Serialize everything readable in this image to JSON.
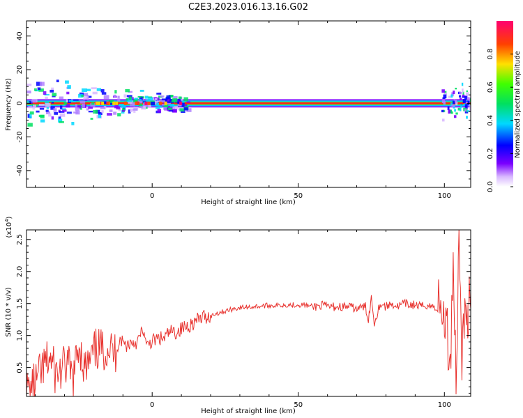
{
  "figure": {
    "title": "C2E3.2023.016.13.16.G02"
  },
  "colors": {
    "snr_line": "#e8332f",
    "axis": "#000000",
    "band_core": "#ff2020",
    "colormap": [
      "#ffffff",
      "#d8b8ff",
      "#7a00ff",
      "#0000ff",
      "#00d8ff",
      "#00ff60",
      "#b8ff00",
      "#ffd000",
      "#ff5000",
      "#ff0070"
    ]
  },
  "chart_data": [
    {
      "type": "heatmap",
      "xlabel": "Height of straight line (km)",
      "ylabel": "Frequency (Hz)",
      "xlim": [
        -43,
        109
      ],
      "ylim": [
        -50,
        49
      ],
      "xticks": [
        0,
        50,
        100
      ],
      "yticks": [
        40,
        20,
        0,
        -20,
        -40
      ],
      "colorbar": {
        "label": "Normalized spectral amplitude",
        "range": [
          0.0,
          1.0
        ],
        "ticks": [
          "0.0",
          "0.2",
          "0.4",
          "0.6",
          "0.8"
        ]
      },
      "band": {
        "frequency_hz": 0,
        "x_range": [
          -43,
          109
        ],
        "noisy_low_end_x": [
          -43,
          12
        ],
        "noisy_high_end_x": [
          98,
          109
        ]
      }
    },
    {
      "type": "line",
      "xlabel": "Height of straight line (km)",
      "ylabel": "SNR (10 * v/v)",
      "y_multiplier": "(x10^4)",
      "xlim": [
        -43,
        109
      ],
      "ylim": [
        0.05,
        2.65
      ],
      "xticks": [
        0,
        50,
        100
      ],
      "yticks": [
        0.5,
        1.0,
        1.5,
        2.0,
        2.5
      ],
      "ytick_labels": [
        "0.5",
        "1.0",
        "1.5",
        "2.0",
        "2.5"
      ],
      "series": [
        {
          "x": [
            -43,
            -40,
            -37,
            -35,
            -33,
            -31,
            -29,
            -27,
            -25,
            -23,
            -21,
            -19,
            -17,
            -15,
            -13,
            -11,
            -9,
            -7,
            -5,
            -3,
            -2,
            -1,
            0,
            2,
            4,
            6,
            8,
            10,
            12,
            14,
            16,
            18,
            20,
            22,
            25,
            28,
            31,
            34,
            37,
            40,
            43,
            46,
            49,
            52,
            55,
            58,
            61,
            64,
            67,
            70,
            73,
            74,
            75,
            76,
            78,
            80,
            82,
            84,
            86,
            88,
            90,
            92,
            94,
            96,
            98,
            100,
            101,
            102,
            103,
            104,
            105,
            106,
            107,
            108,
            109
          ],
          "y": [
            0.1,
            0.25,
            0.5,
            0.65,
            0.4,
            0.45,
            0.55,
            0.3,
            0.9,
            0.45,
            0.6,
            0.8,
            0.75,
            0.85,
            0.7,
            0.95,
            0.85,
            0.9,
            0.9,
            1.1,
            0.8,
            0.9,
            0.9,
            0.95,
            0.95,
            1.05,
            1.05,
            1.1,
            1.15,
            1.2,
            1.25,
            1.3,
            1.3,
            1.35,
            1.38,
            1.42,
            1.44,
            1.45,
            1.46,
            1.47,
            1.47,
            1.48,
            1.48,
            1.48,
            1.45,
            1.47,
            1.45,
            1.45,
            1.45,
            1.42,
            1.45,
            1.25,
            1.6,
            1.2,
            1.5,
            1.45,
            1.5,
            1.45,
            1.5,
            1.48,
            1.48,
            1.45,
            1.48,
            1.45,
            1.42,
            1.3,
            1.0,
            0.5,
            2.3,
            0.3,
            2.5,
            0.8,
            1.2,
            1.45,
            1.42
          ]
        }
      ]
    }
  ]
}
